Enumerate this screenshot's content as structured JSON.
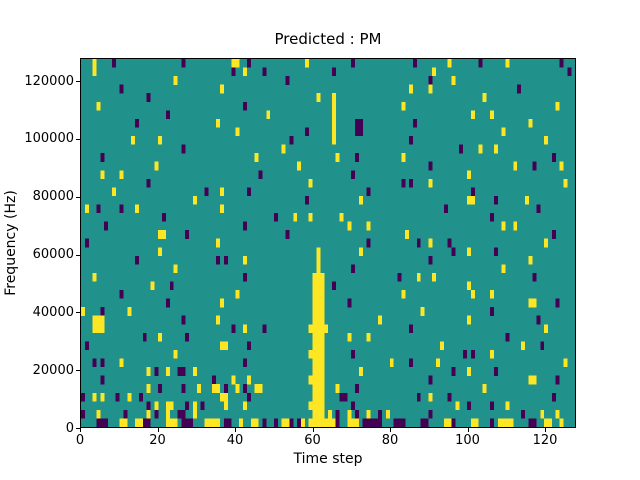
{
  "figure": {
    "title": "Predicted : PM",
    "xlabel": "Time step",
    "ylabel": "Frequency (Hz)",
    "background": "#ffffff"
  },
  "axes": {
    "xlim": [
      0,
      128
    ],
    "ylim": [
      0,
      128000
    ],
    "xticks": [
      0,
      20,
      40,
      60,
      80,
      100,
      120
    ],
    "yticks": [
      0,
      20000,
      40000,
      60000,
      80000,
      100000,
      120000
    ],
    "grid": false,
    "legend": "none",
    "spine_color": "#000000"
  },
  "chart_data": {
    "type": "heatmap",
    "title": "Predicted : PM",
    "xlabel": "Time step",
    "ylabel": "Frequency (Hz)",
    "xlim": [
      0,
      128
    ],
    "ylim": [
      0,
      128000
    ],
    "n_cols": 128,
    "n_rows": 43,
    "colormap": "viridis-3-level",
    "colors": {
      ".": "#21918c",
      "y": "#fde725",
      "p": "#440154"
    },
    "value_meaning": {
      ".": "mid/background",
      "y": "high",
      "p": "low"
    },
    "notable_features": [
      "strong yellow vertical band at time steps 59-63 from 0 Hz up to ~60000 Hz",
      "dense mixed yellow/purple/teal stripe along the bottom row (0 Hz)",
      "sparse scattered single-cell yellow and purple noise elsewhere",
      "short yellow streak near top around time step 65 (100k-120k Hz)"
    ],
    "rows_top_to_bottom": [
      [
        "...y....p.......",
        "..........p.....",
        ".......yy..p....",
        "..........y.....",
        "......p.........",
        "......p........y",
        ".......p......y.",
        "............p..."
      ],
      [
        "...y............",
        "................",
        ".......p..y....p",
        "................",
        ".p..............",
        "...........y....",
        "................",
        "..............p."
      ],
      [
        "................",
        "........y.......",
        "................",
        ".....p..........",
        "................",
        "..........p.....",
        "y...............",
        "................"
      ],
      [
        "..........p.....",
        "................",
        "....y...........",
        "................",
        "................",
        ".....y....y.....",
        "................",
        ".p.............."
      ],
      [
        "................",
        ".p..............",
        "................",
        ".............y..",
        ".y..............",
        "................",
        "........y.......",
        "................"
      ],
      [
        "....y...........",
        "................",
        "..........p.....",
        "................",
        ".y..............",
        "...y............",
        "................",
        "...........y...."
      ],
      [
        "................",
        "......p.........",
        "................",
        "y...............",
        ".y..............",
        "................",
        ".....y....y.....",
        "................"
      ],
      [
        "..............p.",
        "................",
        "...y............",
        "................",
        ".y.....pp.......",
        "......p.........",
        "................",
        "....y..........."
      ],
      [
        "................",
        "................",
        "........y.......",
        "..........p.....",
        ".y.....pp.......",
        "................",
        ".............y..",
        "................"
      ],
      [
        ".............y..",
        "....y...........",
        "................",
        "......p.........",
        ".y..............",
        ".....p..........",
        "................",
        "........y......."
      ],
      [
        "................",
        "..........p.....",
        "................",
        "....y...........",
        "................",
        "................",
        "..p....y...y....",
        "................"
      ],
      [
        ".....p..........",
        "................",
        ".............y..",
        "................",
        "..y....p........",
        "...y............",
        "................",
        "..........p....."
      ],
      [
        "................",
        "...y............",
        "................",
        "........y.......",
        "................",
        "..........p.....",
        "................",
        "y....p......y..."
      ],
      [
        ".....y....y.....",
        "................",
        "..............p.",
        "................",
        "......p.........",
        "................",
        "....y...........",
        "................"
      ],
      [
        "................",
        ".p..............",
        "................",
        "...........y....",
        "................",
        "...p.p....y.....",
        "................",
        ".............y.."
      ],
      [
        "........y.......",
        "................",
        "p...y......p....",
        "................",
        "..........p.....",
        "................",
        ".....p..........",
        "................"
      ],
      [
        "................",
        ".............y..",
        "................",
        "..........p.....",
        "........y.......",
        "................",
        "....yy.....p....",
        "...y............"
      ],
      [
        ".y..p.....p...y.",
        "................",
        "....y...........",
        "................",
        "................",
        "..............p.",
        "................",
        "......p........."
      ],
      [
        "................",
        ".....p..........",
        "................",
        "..p....y...y....",
        "...y............",
        "................",
        "..........p.....",
        "................"
      ],
      [
        "......p.........",
        "................",
        "..........p.....",
        "................",
        ".....y....y.....",
        "................",
        ".............y..",
        "y..............."
      ],
      [
        "................",
        "....yy.....p....",
        "................",
        ".....p..........",
        "................",
        "....y...........",
        "................",
        "..........p....."
      ],
      [
        ".p..............",
        "................",
        "...y............",
        "................",
        "..........p.....",
        ".......p..y....p",
        "................",
        "........y......."
      ],
      [
        "................",
        "....y...........",
        "................",
        ".............y..",
        "........y.......",
        "................",
        "p...y......p....",
        "................"
      ],
      [
        "..............p.",
        "................",
        "...p.p....y.....",
        ".............y..",
        "................",
        "..........p.....",
        "................",
        "....y..........."
      ],
      [
        "................",
        "........y.......",
        "................",
        ".............y..",
        "......p.........",
        "................",
        ".............y..",
        "................"
      ],
      [
        "...y............",
        "................",
        "..........p.....",
        "............yyy.",
        "................",
        "..p....y...y....",
        "................",
        ".....p.........."
      ],
      [
        "................",
        "..y....p........",
        "................",
        "............yyy.",
        ".p..............",
        "................",
        "....y...........",
        "................"
      ],
      [
        "..........p.....",
        "................",
        "........y.......",
        "............yyy.",
        "................",
        "...y............",
        ".....y....y.....",
        "................"
      ],
      [
        "................",
        "......p.........",
        "....y...........",
        "............yyy.",
        ".....p..........",
        "................",
        "................",
        "....yy.....p...."
      ],
      [
        "y....p......y...",
        "................",
        "................",
        "............yyy.",
        "................",
        "........y.......",
        "..........p.....",
        "................"
      ],
      [
        "...yyy..........",
        "..........p.....",
        "...y............",
        "............yyy.",
        ".............y..",
        "................",
        "....y...........",
        "......p........."
      ],
      [
        "...yyy..........",
        "................",
        ".......p..y....p",
        "...........yyyyy",
        "................",
        ".....p..........",
        "................",
        "........y......."
      ],
      [
        "................",
        "p...y......p....",
        "................",
        "............yyy.",
        ".....y....y.....",
        "................",
        "..............p.",
        "................"
      ],
      [
        ".p..............",
        "................",
        "....yy.....p....",
        "............yyy.",
        "................",
        ".............y..",
        "................",
        "..y....p........"
      ],
      [
        "................",
        "........y.......",
        "................",
        "...........yyyy.",
        "......p.........",
        "................",
        "...p.p....y.....",
        "................"
      ],
      [
        "...p.p....y.....",
        "................",
        "..........p.....",
        "............yyy.",
        "................",
        "y....p......y...",
        "................",
        ".............y.."
      ],
      [
        "................",
        ".y.p..y..pp..y..",
        "................",
        "............yyy.",
        "........y.......",
        "................",
        "p...y......p....",
        "................"
      ],
      [
        ".....p..........",
        "................",
        "..p....y...y....",
        "...........yyyy.",
        "................",
        "..........p.....",
        "................",
        "....yy.....p...."
      ],
      [
        "................",
        ".y..p.....p...y.",
        "..yy.p..y.p..yy.",
        "............yyy.",
        "..y....p........",
        "................",
        "........y.......",
        "................"
      ],
      [
        "p..y.y...p..y..p",
        "................",
        "....yy.....p....",
        "............yyy.",
        "...pp...........",
        ".......p..y....p",
        "................",
        "..........p....."
      ],
      [
        "................",
        ".p.y..yy...p.y.p",
        ".....y....y.....",
        "...........yyyy.",
        "......p.........",
        "................",
        ".y..p.....p...y.",
        "................"
      ],
      [
        "p...y......p....",
        ".y.p..y..pp..y..",
        "................",
        "............yyy.",
        "y.p..y.p..y..p.y",
        "..........p.....",
        "................",
        "..p....y...y...."
      ],
      [
        "....ppp...yy..yy",
        "pp....yyy.ppp...",
        "yyyy.pp..y..yy.p",
        "..p.yyp.py.yyyyy",
        "yyp..yyy.ppppp..",
        ".ppp....pp....yy",
        "p....yy...p.yyyy",
        "....pp..yy..y..."
      ]
    ]
  }
}
